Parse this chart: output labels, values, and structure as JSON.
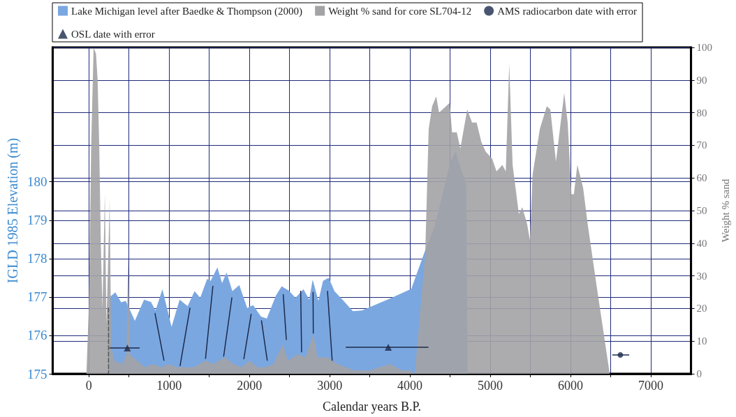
{
  "chart_data": {
    "type": "area",
    "xlabel": "Calendar years B.P.",
    "ylabel": "IGLD 1985 Elevation (m)",
    "y2label": "Weight % sand",
    "xlim": [
      -450,
      7500
    ],
    "xticks": [
      0,
      {
        "value": 500,
        "label": null
      },
      1000,
      {
        "value": 1500,
        "label": null
      },
      2000,
      {
        "value": 2500,
        "label": null
      },
      3000,
      {
        "value": 3500,
        "label": null
      },
      4000,
      {
        "value": 4500,
        "label": null
      },
      5000,
      {
        "value": 5500,
        "label": null
      },
      6000,
      {
        "value": 6500,
        "label": null
      },
      7000
    ],
    "ylim": [
      175,
      183.5
    ],
    "yticks": [
      175,
      176,
      177,
      178,
      179,
      180
    ],
    "y2lim": [
      0,
      100
    ],
    "y2ticks": [
      0,
      10,
      20,
      30,
      40,
      50,
      60,
      70,
      80,
      90,
      100
    ],
    "grid": true,
    "legend": "top left",
    "series": [
      {
        "name": "Lake Michigan level after Baedke & Thompson (2000)",
        "color": "#7ba7e0",
        "x": [
          250,
          260,
          331,
          403,
          460,
          574,
          688,
          774,
          831,
          917,
          1031,
          1131,
          1231,
          1317,
          1388,
          1474,
          1517,
          1602,
          1660,
          1716,
          1788,
          1874,
          1973,
          2045,
          2145,
          2217,
          2331,
          2402,
          2488,
          2574,
          2674,
          2745,
          2788,
          2860,
          2917,
          2988,
          3059,
          3174,
          3288,
          3402,
          3753,
          4016,
          4190,
          4300,
          4392,
          4500,
          4567,
          4640,
          4700,
          4718
        ],
        "values": [
          175,
          177.0,
          177.12,
          176.86,
          176.9,
          176.38,
          176.93,
          176.87,
          176.65,
          177.2,
          176.22,
          176.93,
          176.76,
          177.15,
          176.98,
          177.47,
          177.42,
          177.77,
          177.36,
          177.64,
          177.15,
          177.31,
          176.71,
          176.79,
          176.49,
          176.44,
          177.04,
          177.28,
          177.17,
          176.98,
          177.2,
          176.93,
          177.45,
          176.9,
          177.42,
          177.5,
          177.15,
          176.9,
          176.63,
          176.65,
          176.96,
          177.21,
          178.22,
          178.8,
          179.57,
          180.5,
          180.79,
          180.3,
          179.96,
          175
        ]
      },
      {
        "name": "Weight % sand for core SL704-12",
        "axis": "y2",
        "color": "#a3a3a6",
        "x": [
          -30,
          0,
          30,
          60,
          90,
          110,
          130,
          150,
          170,
          200,
          220,
          260,
          280,
          320,
          420,
          470,
          490,
          510,
          600,
          700,
          800,
          900,
          1000,
          1100,
          1200,
          1300,
          1454,
          1550,
          1694,
          1800,
          1900,
          2000,
          2100,
          2200,
          2300,
          2417,
          2480,
          2600,
          2700,
          2796,
          2850,
          2973,
          3100,
          3300,
          3500,
          3750,
          3900,
          4000,
          4060,
          4190,
          4233,
          4276,
          4327,
          4362,
          4495,
          4524,
          4583,
          4627,
          4713,
          4773,
          4830,
          4889,
          4944,
          5021,
          5078,
          5150,
          5193,
          5236,
          5278,
          5356,
          5398,
          5458,
          5493,
          5527,
          5617,
          5704,
          5748,
          5818,
          5921,
          5964,
          6011,
          6041,
          6084,
          6156,
          6212,
          6324,
          6487
        ],
        "values": [
          0,
          20,
          70,
          100,
          98,
          90,
          70,
          40,
          20,
          55,
          15,
          53,
          8,
          4,
          3,
          6,
          36,
          6,
          4,
          2,
          3,
          2,
          3,
          2,
          2,
          2,
          4,
          3,
          5,
          3,
          2,
          4,
          2,
          2,
          3,
          9,
          4,
          6,
          5,
          12,
          5,
          5,
          3,
          1,
          1,
          3,
          1,
          1,
          0,
          37,
          75,
          82,
          85,
          80,
          83,
          74,
          74,
          69,
          81,
          77,
          77,
          71,
          68,
          66,
          62,
          64,
          62,
          95,
          64,
          49,
          51,
          46,
          41,
          61,
          75,
          82,
          81,
          65,
          86,
          77,
          55,
          55,
          64,
          57,
          46,
          27,
          0
        ]
      },
      {
        "type": "line",
        "color": "#1c2a4c",
        "line_style": "solid",
        "marker": "none",
        "x": [
          825,
          936,
          980,
          1137,
          1260,
          1300,
          1454,
          1545,
          1600,
          1680,
          1782,
          1850,
          1931,
          2022,
          2080,
          2151,
          2222,
          2300,
          2422,
          2460,
          2550,
          2639,
          2650,
          2700,
          2793,
          2796,
          2900,
          2973,
          3031
        ],
        "values": [
          176.57,
          175.35,
          null,
          175.21,
          176.71,
          null,
          175.4,
          177.28,
          null,
          175.46,
          176.98,
          null,
          175.39,
          176.55,
          null,
          176.38,
          175.35,
          null,
          177.06,
          175.89,
          null,
          177.15,
          175.57,
          null,
          177.12,
          176.06,
          null,
          177.15,
          175.35
        ]
      },
      {
        "type": "line",
        "color": "#555555",
        "line_style": "dashed",
        "marker": "none",
        "x": [
          246,
          246
        ],
        "values": [
          176.71,
          175
        ]
      },
      {
        "name": "AMS radiocarbon date with error",
        "type": "scatter",
        "color": "#1c2a4c",
        "marker": "circle",
        "x": [
          6620
        ],
        "values": [
          175.49
        ],
        "xerrors": [
          [
            6520,
            6730
          ]
        ]
      },
      {
        "name": "OSL date with error",
        "type": "scatter",
        "color": "#1c2a4c",
        "marker": "triangle",
        "x": [
          480,
          3730
        ],
        "values": [
          175.67,
          175.69
        ],
        "xerrors": [
          [
            257,
            634
          ],
          [
            3200,
            4230
          ]
        ]
      }
    ]
  }
}
